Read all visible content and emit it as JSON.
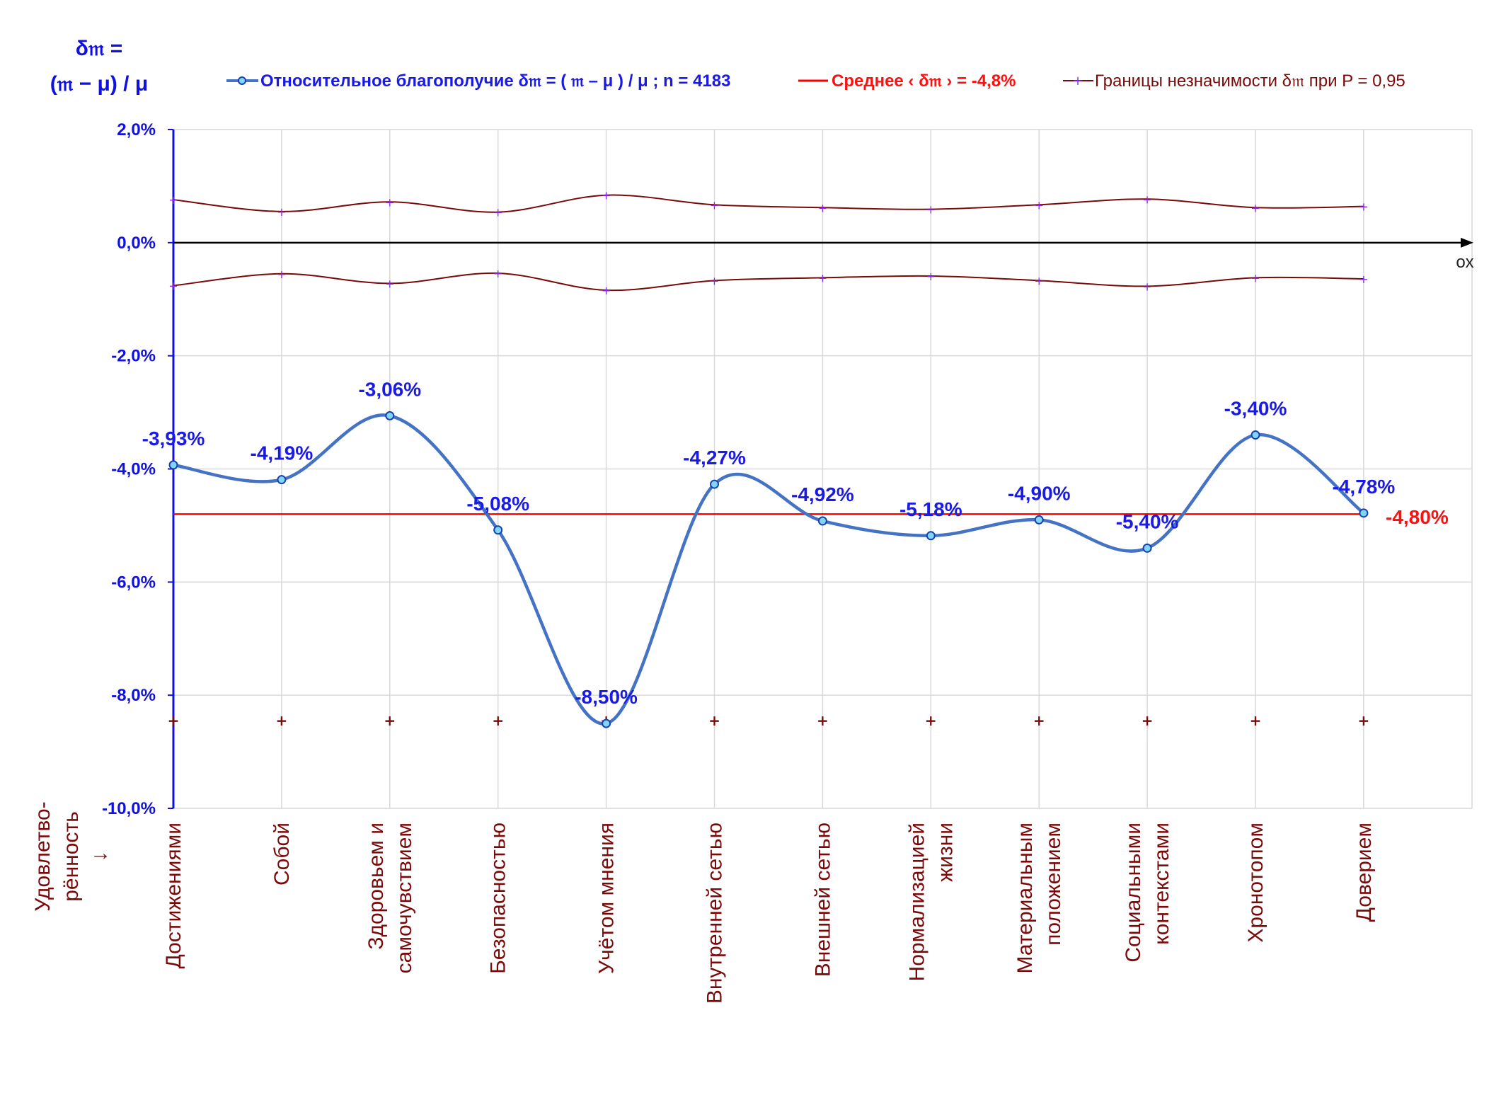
{
  "y_axis_title": [
    "δ𝔪 =",
    "(𝔪 − μ) / μ"
  ],
  "x_axis_title": [
    "Удовлетво-",
    "рённость",
    "↓"
  ],
  "ox_label": "ox",
  "legend": {
    "series_main": "Относительное благополучие δ𝔪 = ( 𝔪 – μ ) / μ ; n = 4183",
    "series_mean": "Среднее ‹ δ𝔪 › = -4,8%",
    "series_bounds": "Границы незначимости δ𝔪 при P = 0,95"
  },
  "mean_label": "-4,80%",
  "colors": {
    "main": "#4472c4",
    "marker_fill": "#7fd6f5",
    "mean": "#ff0000",
    "bounds": "#7a0a0a",
    "axis_y": "#1010e0",
    "grid": "#d9d9d9"
  },
  "chart_data": {
    "type": "line",
    "ylim": [
      -10,
      2
    ],
    "y_tick_labels": [
      "2,0%",
      "0,0%",
      "-2,0%",
      "-4,0%",
      "-6,0%",
      "-8,0%",
      "-10,0%"
    ],
    "categories": [
      [
        "Достижениями"
      ],
      [
        "Собой"
      ],
      [
        "Здоровьем и",
        "самочувствием"
      ],
      [
        "Безопасностью"
      ],
      [
        "Учётом мнения"
      ],
      [
        "Внутренней сетью"
      ],
      [
        "Внешней сетью"
      ],
      [
        "Нормализацией",
        "жизни"
      ],
      [
        "Материальным",
        "положением"
      ],
      [
        "Социальными",
        "контекстами"
      ],
      [
        "Хронотопом"
      ],
      [
        "Доверием"
      ]
    ],
    "series": [
      {
        "name": "Относительное благополучие δ𝔪 = ( 𝔪 – μ ) / μ ; n = 4183",
        "values": [
          -3.93,
          -4.19,
          -3.06,
          -5.08,
          -8.5,
          -4.27,
          -4.92,
          -5.18,
          -4.9,
          -5.4,
          -3.4,
          -4.78
        ],
        "labels": [
          "-3,93%",
          "-4,19%",
          "-3,06%",
          "-5,08%",
          "-8,50%",
          "-4,27%",
          "-4,92%",
          "-5,18%",
          "-4,90%",
          "-5,40%",
          "-3,40%",
          "-4,78%"
        ]
      },
      {
        "name": "Среднее ‹ δ𝔪 › = -4,8%",
        "values": [
          -4.8,
          -4.8,
          -4.8,
          -4.8,
          -4.8,
          -4.8,
          -4.8,
          -4.8,
          -4.8,
          -4.8,
          -4.8,
          -4.8
        ]
      },
      {
        "name": "Границы незначимости δ𝔪 при P = 0,95",
        "upper": [
          0.76,
          0.55,
          0.72,
          0.54,
          0.84,
          0.67,
          0.62,
          0.59,
          0.67,
          0.77,
          0.62,
          0.64
        ],
        "lower": [
          -0.76,
          -0.55,
          -0.72,
          -0.54,
          -0.84,
          -0.67,
          -0.62,
          -0.59,
          -0.67,
          -0.77,
          -0.62,
          -0.64
        ],
        "low_markers": [
          -8.45,
          -8.45,
          -8.45,
          -8.45,
          -8.45,
          -8.45,
          -8.45,
          -8.45,
          -8.45,
          -8.45,
          -8.45,
          -8.45
        ]
      }
    ],
    "grid": true,
    "legend_position": "top"
  }
}
